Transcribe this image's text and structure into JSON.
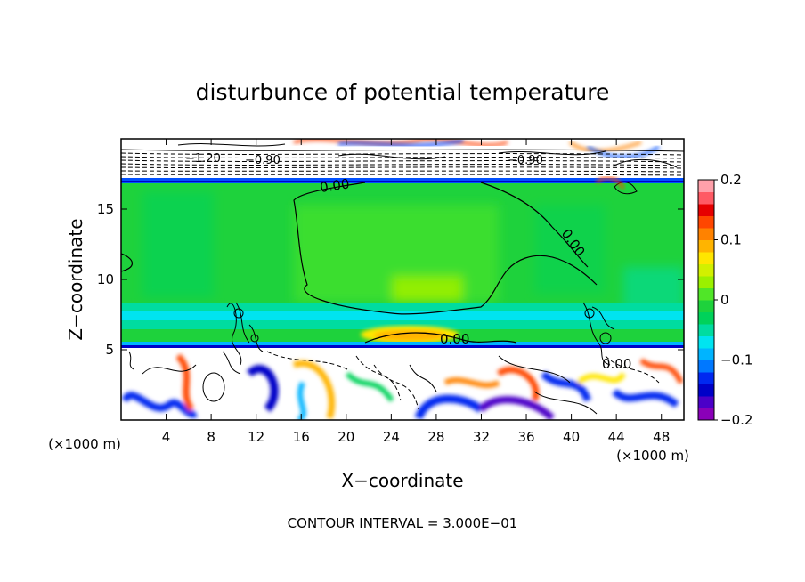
{
  "chart_data": {
    "type": "heatmap",
    "title": "disturbunce of potential temperature",
    "xlabel": "X−coordinate",
    "ylabel": "Z−coordinate",
    "x_unit_left": "(×1000 m)",
    "x_unit_right": "(×1000 m)",
    "xlim": [
      0,
      50
    ],
    "ylim": [
      0,
      20
    ],
    "x_ticks": [
      4,
      8,
      12,
      16,
      20,
      24,
      28,
      32,
      36,
      40,
      44,
      48
    ],
    "y_ticks": [
      5,
      10,
      15
    ],
    "x_tick_labels": [
      "4",
      "8",
      "12",
      "16",
      "20",
      "24",
      "28",
      "32",
      "36",
      "40",
      "44",
      "48"
    ],
    "y_tick_labels": [
      "5",
      "10",
      "15"
    ],
    "colorbar": {
      "range": [
        -0.2,
        0.2
      ],
      "tick_values": [
        0.2,
        0.1,
        0,
        -0.1,
        -0.2
      ],
      "tick_labels": [
        "0.2",
        "0.1",
        "0",
        "−0.1",
        "−0.2"
      ],
      "colors": [
        "#8a00b8",
        "#4b00c8",
        "#0000c8",
        "#0028f0",
        "#0078ff",
        "#00b4ff",
        "#00e4f0",
        "#00dca0",
        "#00d25a",
        "#1ed23c",
        "#50e628",
        "#9bf000",
        "#d2f000",
        "#ffe600",
        "#ffb400",
        "#ff8200",
        "#ff4600",
        "#e60000",
        "#ff5a64",
        "#ffa0aa"
      ]
    },
    "contour_labels": [
      {
        "text": "0.00",
        "x": 36.5,
        "y": 16.8
      },
      {
        "text": "0.00",
        "x": 39.5,
        "y": 12.5
      },
      {
        "text": "0.00",
        "x": 29.5,
        "y": 5.8
      },
      {
        "text": "0.00",
        "x": 43.0,
        "y": 4.0
      },
      {
        "text": "−1.20",
        "x": 7.0,
        "y": 18.8
      },
      {
        "text": "−0.90",
        "x": 12.5,
        "y": 18.6
      },
      {
        "text": "−0.90",
        "x": 35.5,
        "y": 18.6
      }
    ],
    "annotation": "CONTOUR INTERVAL = 3.000E−01",
    "grid": false,
    "legend": "colorbar-right"
  }
}
